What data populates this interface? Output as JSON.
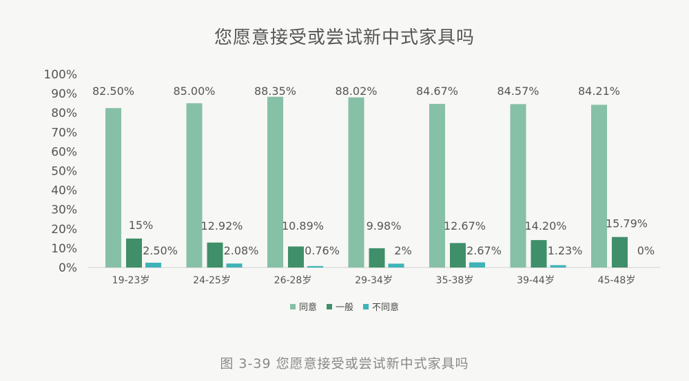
{
  "chart_data": {
    "type": "bar",
    "title": "您愿意接受或尝试新中式家具吗",
    "categories": [
      "19-23岁",
      "24-25岁",
      "26-28岁",
      "29-34岁",
      "35-38岁",
      "39-44岁",
      "45-48岁"
    ],
    "series": [
      {
        "name": "同意",
        "color": "#86c0a6",
        "values": [
          82.5,
          85.0,
          88.35,
          88.02,
          84.67,
          84.57,
          84.21
        ],
        "labels": [
          "82.50%",
          "85.00%",
          "88.35%",
          "88.02%",
          "84.67%",
          "84.57%",
          "84.21%"
        ]
      },
      {
        "name": "一般",
        "color": "#3f8f6a",
        "values": [
          15,
          12.92,
          10.89,
          9.98,
          12.67,
          14.2,
          15.79
        ],
        "labels": [
          "15%",
          "12.92%",
          "10.89%",
          "9.98%",
          "12.67%",
          "14.20%",
          "15.79%"
        ]
      },
      {
        "name": "不同意",
        "color": "#3fb3b8",
        "values": [
          2.5,
          2.08,
          0.76,
          2,
          2.67,
          1.23,
          0
        ],
        "labels": [
          "2.50%",
          "2.08%",
          "0.76%",
          "2%",
          "2.67%",
          "1.23%",
          "0%"
        ]
      }
    ],
    "yticks": [
      "0%",
      "10%",
      "20%",
      "30%",
      "40%",
      "50%",
      "60%",
      "70%",
      "80%",
      "90%",
      "100%"
    ],
    "ylim": [
      0,
      100
    ],
    "xlabel": "",
    "ylabel": "",
    "legend_position": "bottom",
    "grid": false
  },
  "caption": "图 3-39 您愿意接受或尝试新中式家具吗"
}
